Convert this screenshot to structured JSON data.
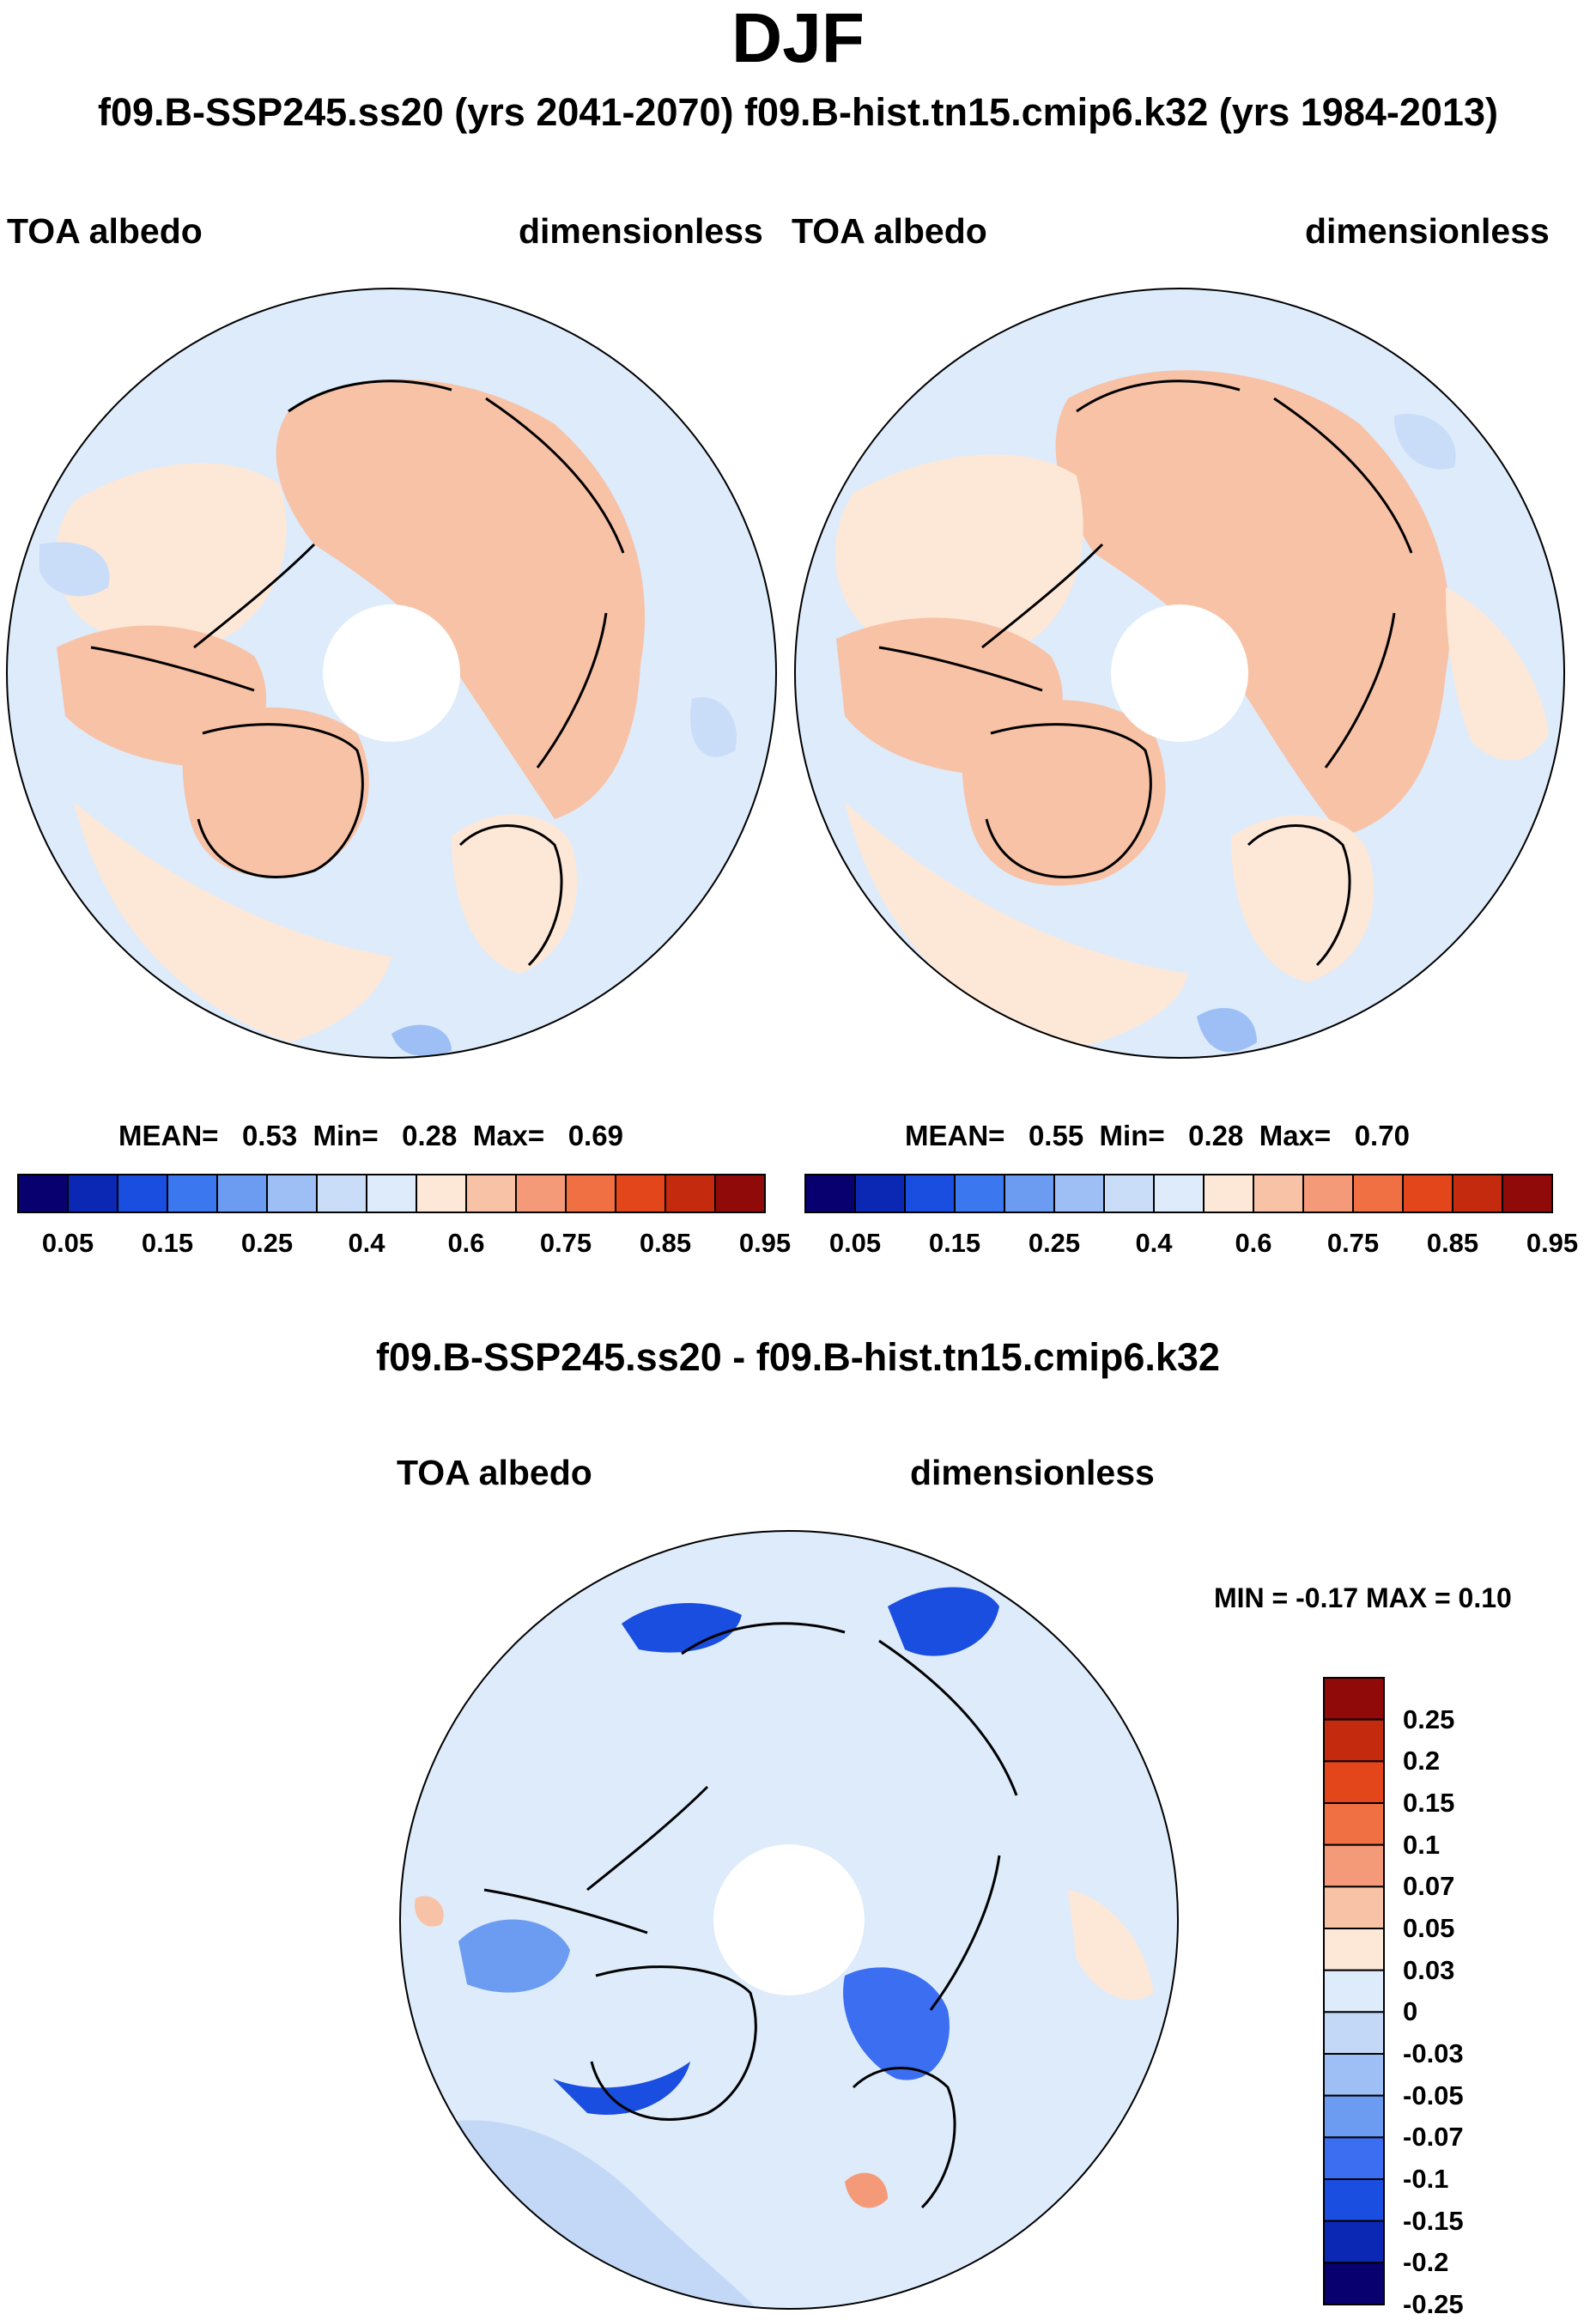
{
  "title": "DJF",
  "subtitle": "f09.B-SSP245.ss20 (yrs 2041-2070)  f09.B-hist.tn15.cmip6.k32 (yrs 1984-2013)",
  "colors": {
    "land_outline": "#000000",
    "main_scale": [
      "#08006e",
      "#0a28b4",
      "#1a4ee0",
      "#3b78f0",
      "#6b9cf2",
      "#9dbff5",
      "#c9dcf8",
      "#ddebfb",
      "#fde8d8",
      "#f8c2a6",
      "#f59a78",
      "#f07044",
      "#e4461c",
      "#c42a0e",
      "#8f0a08"
    ],
    "diff_scale": [
      "#08006e",
      "#0a28b4",
      "#1a4ee0",
      "#3b6ef0",
      "#6b9cf2",
      "#9dbff5",
      "#c2d8f6",
      "#ddebfb",
      "#fde8d8",
      "#f8c2a6",
      "#f59a78",
      "#f07044",
      "#e4461c",
      "#c42a0e",
      "#8f0a08"
    ]
  },
  "panels": [
    {
      "name": "ssp245",
      "left_label": "TOA albedo",
      "right_label": "dimensionless",
      "stats": {
        "mean_label": "MEAN=",
        "mean": "0.53",
        "min_label": "Min=",
        "min": "0.28",
        "max_label": "Max=",
        "max": "0.69"
      }
    },
    {
      "name": "hist",
      "left_label": "TOA albedo",
      "right_label": "dimensionless",
      "stats": {
        "mean_label": "MEAN=",
        "mean": "0.55",
        "min_label": "Min=",
        "min": "0.28",
        "max_label": "Max=",
        "max": "0.70"
      }
    }
  ],
  "diff_panel": {
    "title": "f09.B-SSP245.ss20 - f09.B-hist.tn15.cmip6.k32",
    "left_label": "TOA albedo",
    "right_label": "dimensionless",
    "minmax": "MIN =  -0.17 MAX =   0.10"
  },
  "chart_data": [
    {
      "type": "heatmap",
      "projection": "north polar stereographic",
      "title": "TOA albedo (f09.B-SSP245.ss20, yrs 2041-2070, DJF)",
      "units": "dimensionless",
      "mean": 0.53,
      "min": 0.28,
      "max": 0.69,
      "colorbar_levels": [
        0.05,
        0.1,
        0.15,
        0.2,
        0.25,
        0.3,
        0.4,
        0.5,
        0.6,
        0.7,
        0.75,
        0.8,
        0.85,
        0.9,
        0.95
      ],
      "colorbar_tick_labels": [
        "0.05",
        "0.15",
        "0.25",
        "0.4",
        "0.6",
        "0.75",
        "0.85",
        "0.95"
      ]
    },
    {
      "type": "heatmap",
      "projection": "north polar stereographic",
      "title": "TOA albedo (f09.B-hist.tn15.cmip6.k32, yrs 1984-2013, DJF)",
      "units": "dimensionless",
      "mean": 0.55,
      "min": 0.28,
      "max": 0.7,
      "colorbar_levels": [
        0.05,
        0.1,
        0.15,
        0.2,
        0.25,
        0.3,
        0.4,
        0.5,
        0.6,
        0.7,
        0.75,
        0.8,
        0.85,
        0.9,
        0.95
      ],
      "colorbar_tick_labels": [
        "0.05",
        "0.15",
        "0.25",
        "0.4",
        "0.6",
        "0.75",
        "0.85",
        "0.95"
      ]
    },
    {
      "type": "heatmap",
      "projection": "north polar stereographic",
      "title": "f09.B-SSP245.ss20 - f09.B-hist.tn15.cmip6.k32",
      "units": "dimensionless",
      "min": -0.17,
      "max": 0.1,
      "colorbar_levels": [
        -0.25,
        -0.2,
        -0.15,
        -0.1,
        -0.07,
        -0.05,
        -0.03,
        0,
        0.03,
        0.05,
        0.07,
        0.1,
        0.15,
        0.2,
        0.25
      ],
      "colorbar_tick_labels": [
        "0.25",
        "0.2",
        "0.15",
        "0.1",
        "0.07",
        "0.05",
        "0.03",
        "0",
        "-0.03",
        "-0.05",
        "-0.07",
        "-0.1",
        "-0.15",
        "-0.2",
        "-0.25"
      ]
    }
  ]
}
